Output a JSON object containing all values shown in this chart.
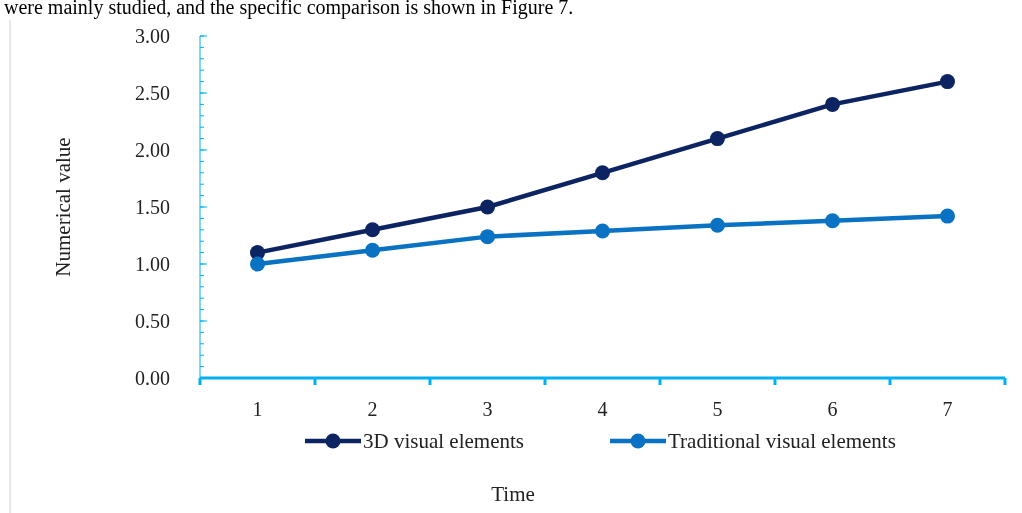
{
  "chart_data": {
    "type": "line",
    "xlabel": "Time",
    "ylabel": "Numerical value",
    "annotations": [
      "were mainly studied, and the specific comparison is shown in Figure 7."
    ],
    "categories": [
      "1",
      "2",
      "3",
      "4",
      "5",
      "6",
      "7"
    ],
    "series": [
      {
        "name": "3D visual elements",
        "color": "#0c2461",
        "values": [
          1.1,
          1.3,
          1.5,
          1.8,
          2.1,
          2.4,
          2.6
        ]
      },
      {
        "name": "Traditional visual elements",
        "color": "#0a72c2",
        "values": [
          1.0,
          1.12,
          1.24,
          1.29,
          1.34,
          1.38,
          1.42
        ]
      }
    ],
    "ylim": [
      0,
      3
    ],
    "yticks": [
      {
        "value": 0,
        "label": "0.00"
      },
      {
        "value": 0.5,
        "label": "0.50"
      },
      {
        "value": 1,
        "label": "1.00"
      },
      {
        "value": 1.5,
        "label": "1.50"
      },
      {
        "value": 2,
        "label": "2.00"
      },
      {
        "value": 2.5,
        "label": "2.50"
      },
      {
        "value": 3,
        "label": "3.00"
      }
    ],
    "grid": false,
    "legend": "bottom",
    "marker": "circle",
    "line_style": "solid"
  }
}
